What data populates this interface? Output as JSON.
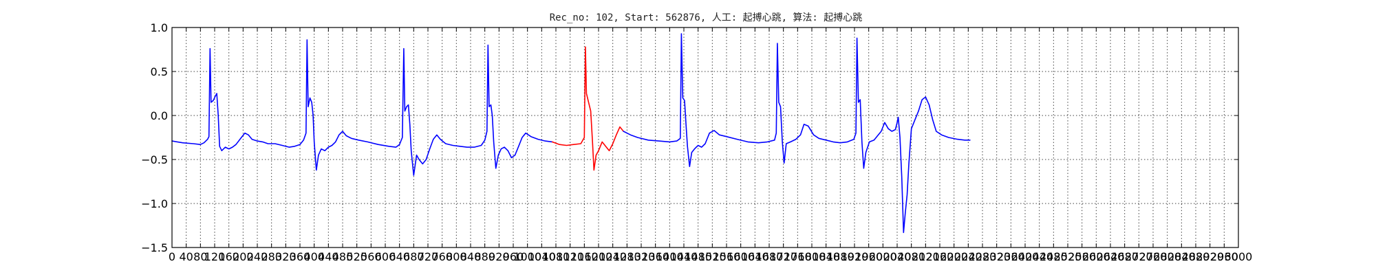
{
  "chart_data": {
    "type": "line",
    "title": "Rec_no: 102, Start: 562876, 人工: 起搏心跳, 算法: 起搏心跳",
    "xlabel": "",
    "ylabel": "",
    "xlim": [
      0,
      3000
    ],
    "ylim": [
      -1.5,
      1.0
    ],
    "grid": true,
    "yticks": [
      1.0,
      0.5,
      0.0,
      -0.5,
      -1.0,
      -1.5
    ],
    "ytick_labels": [
      "1.0",
      "0.5",
      "0.0",
      "−0.5",
      "−1.0",
      "−1.5"
    ],
    "xticks": [
      0,
      40,
      80,
      120,
      160,
      200,
      240,
      280,
      320,
      360,
      400,
      440,
      480,
      520,
      560,
      600,
      640,
      680,
      720,
      760,
      800,
      840,
      880,
      920,
      960,
      1000,
      1040,
      1080,
      1120,
      1160,
      1200,
      1240,
      1280,
      1320,
      1360,
      1400,
      1440,
      1480,
      1520,
      1560,
      1600,
      1640,
      1680,
      1720,
      1760,
      1800,
      1840,
      1880,
      1920,
      1960,
      2000,
      2040,
      2080,
      2120,
      2160,
      2200,
      2240,
      2280,
      2320,
      2360,
      2400,
      2440,
      2480,
      2520,
      2560,
      2600,
      2640,
      2680,
      2720,
      2760,
      2800,
      2840,
      2880,
      2920,
      2960,
      3000
    ],
    "xtick_labels": [
      "0",
      "40",
      "80",
      "120",
      "160",
      "200",
      "240",
      "280",
      "320",
      "360",
      "400",
      "440",
      "480",
      "520",
      "560",
      "600",
      "640",
      "680",
      "720",
      "760",
      "800",
      "840",
      "880",
      "920",
      "960",
      "1000",
      "1040",
      "1080",
      "1120",
      "1160",
      "1200",
      "1240",
      "1280",
      "1320",
      "1360",
      "1400",
      "1440",
      "1480",
      "1520",
      "1560",
      "1600",
      "1640",
      "1680",
      "1720",
      "1760",
      "1800",
      "1840",
      "1880",
      "1920",
      "1960",
      "2000",
      "2040",
      "2080",
      "2120",
      "2160",
      "2200",
      "2240",
      "2280",
      "2320",
      "2360",
      "2400",
      "2440",
      "2480",
      "2520",
      "2560",
      "2600",
      "2640",
      "2680",
      "2720",
      "2760",
      "2800",
      "2840",
      "2880",
      "2920",
      "2960",
      "3000"
    ],
    "series": [
      {
        "color": "#0000ff",
        "points": [
          [
            0,
            -0.29
          ],
          [
            30,
            -0.31
          ],
          [
            60,
            -0.32
          ],
          [
            80,
            -0.33
          ],
          [
            90,
            -0.31
          ],
          [
            100,
            -0.27
          ],
          [
            104,
            -0.24
          ],
          [
            107,
            0.76
          ],
          [
            110,
            0.15
          ],
          [
            116,
            0.17
          ],
          [
            122,
            0.22
          ],
          [
            126,
            0.25
          ],
          [
            130,
            0.0
          ],
          [
            134,
            -0.35
          ],
          [
            140,
            -0.4
          ],
          [
            150,
            -0.36
          ],
          [
            160,
            -0.38
          ],
          [
            170,
            -0.36
          ],
          [
            180,
            -0.33
          ],
          [
            195,
            -0.25
          ],
          [
            205,
            -0.2
          ],
          [
            215,
            -0.22
          ],
          [
            225,
            -0.27
          ],
          [
            240,
            -0.29
          ],
          [
            255,
            -0.3
          ],
          [
            270,
            -0.32
          ],
          [
            290,
            -0.32
          ],
          [
            310,
            -0.34
          ],
          [
            330,
            -0.36
          ],
          [
            345,
            -0.35
          ],
          [
            360,
            -0.33
          ],
          [
            370,
            -0.28
          ],
          [
            377,
            -0.2
          ],
          [
            380,
            0.86
          ],
          [
            383,
            0.1
          ],
          [
            388,
            0.2
          ],
          [
            393,
            0.15
          ],
          [
            397,
            0.0
          ],
          [
            400,
            -0.3
          ],
          [
            406,
            -0.62
          ],
          [
            412,
            -0.45
          ],
          [
            420,
            -0.38
          ],
          [
            430,
            -0.4
          ],
          [
            440,
            -0.36
          ],
          [
            450,
            -0.34
          ],
          [
            460,
            -0.3
          ],
          [
            470,
            -0.22
          ],
          [
            480,
            -0.18
          ],
          [
            490,
            -0.23
          ],
          [
            505,
            -0.26
          ],
          [
            525,
            -0.28
          ],
          [
            550,
            -0.3
          ],
          [
            580,
            -0.33
          ],
          [
            610,
            -0.35
          ],
          [
            630,
            -0.36
          ],
          [
            640,
            -0.33
          ],
          [
            648,
            -0.25
          ],
          [
            652,
            0.76
          ],
          [
            655,
            0.05
          ],
          [
            660,
            0.1
          ],
          [
            665,
            0.12
          ],
          [
            669,
            -0.1
          ],
          [
            673,
            -0.4
          ],
          [
            680,
            -0.68
          ],
          [
            688,
            -0.45
          ],
          [
            695,
            -0.5
          ],
          [
            705,
            -0.55
          ],
          [
            715,
            -0.5
          ],
          [
            725,
            -0.38
          ],
          [
            735,
            -0.27
          ],
          [
            745,
            -0.22
          ],
          [
            755,
            -0.27
          ],
          [
            770,
            -0.32
          ],
          [
            790,
            -0.34
          ],
          [
            810,
            -0.35
          ],
          [
            830,
            -0.36
          ],
          [
            850,
            -0.36
          ],
          [
            870,
            -0.34
          ],
          [
            880,
            -0.28
          ],
          [
            886,
            -0.18
          ],
          [
            889,
            0.8
          ],
          [
            892,
            0.1
          ],
          [
            897,
            0.12
          ],
          [
            901,
            0.0
          ],
          [
            905,
            -0.3
          ],
          [
            911,
            -0.6
          ],
          [
            918,
            -0.45
          ],
          [
            926,
            -0.38
          ],
          [
            935,
            -0.36
          ],
          [
            945,
            -0.4
          ],
          [
            955,
            -0.48
          ],
          [
            965,
            -0.45
          ],
          [
            975,
            -0.35
          ],
          [
            985,
            -0.25
          ],
          [
            995,
            -0.2
          ],
          [
            1010,
            -0.24
          ],
          [
            1030,
            -0.27
          ],
          [
            1050,
            -0.29
          ],
          [
            1070,
            -0.3
          ]
        ]
      },
      {
        "color": "#ff0000",
        "points": [
          [
            1070,
            -0.3
          ],
          [
            1090,
            -0.33
          ],
          [
            1110,
            -0.34
          ],
          [
            1130,
            -0.33
          ],
          [
            1150,
            -0.32
          ],
          [
            1160,
            -0.25
          ],
          [
            1163,
            0.78
          ],
          [
            1166,
            0.25
          ],
          [
            1172,
            0.15
          ],
          [
            1178,
            0.05
          ],
          [
            1183,
            -0.3
          ],
          [
            1187,
            -0.62
          ],
          [
            1193,
            -0.45
          ],
          [
            1200,
            -0.4
          ],
          [
            1210,
            -0.3
          ],
          [
            1220,
            -0.35
          ],
          [
            1230,
            -0.4
          ],
          [
            1240,
            -0.32
          ],
          [
            1250,
            -0.22
          ],
          [
            1260,
            -0.13
          ],
          [
            1270,
            -0.18
          ]
        ]
      },
      {
        "color": "#0000ff",
        "points": [
          [
            1270,
            -0.18
          ],
          [
            1290,
            -0.22
          ],
          [
            1310,
            -0.25
          ],
          [
            1340,
            -0.28
          ],
          [
            1370,
            -0.29
          ],
          [
            1400,
            -0.3
          ],
          [
            1420,
            -0.29
          ],
          [
            1430,
            -0.26
          ],
          [
            1433,
            0.93
          ],
          [
            1437,
            0.2
          ],
          [
            1442,
            0.17
          ],
          [
            1446,
            -0.1
          ],
          [
            1450,
            -0.35
          ],
          [
            1456,
            -0.58
          ],
          [
            1462,
            -0.42
          ],
          [
            1470,
            -0.38
          ],
          [
            1480,
            -0.34
          ],
          [
            1490,
            -0.36
          ],
          [
            1500,
            -0.32
          ],
          [
            1512,
            -0.2
          ],
          [
            1525,
            -0.17
          ],
          [
            1540,
            -0.22
          ],
          [
            1560,
            -0.24
          ],
          [
            1590,
            -0.27
          ],
          [
            1620,
            -0.3
          ],
          [
            1650,
            -0.31
          ],
          [
            1675,
            -0.3
          ],
          [
            1695,
            -0.28
          ],
          [
            1700,
            -0.2
          ],
          [
            1703,
            0.82
          ],
          [
            1707,
            0.15
          ],
          [
            1712,
            0.1
          ],
          [
            1717,
            -0.3
          ],
          [
            1722,
            -0.54
          ],
          [
            1728,
            -0.32
          ],
          [
            1740,
            -0.3
          ],
          [
            1755,
            -0.27
          ],
          [
            1768,
            -0.22
          ],
          [
            1778,
            -0.1
          ],
          [
            1790,
            -0.12
          ],
          [
            1805,
            -0.22
          ],
          [
            1820,
            -0.26
          ],
          [
            1840,
            -0.28
          ],
          [
            1860,
            -0.3
          ],
          [
            1880,
            -0.31
          ],
          [
            1900,
            -0.3
          ],
          [
            1918,
            -0.27
          ],
          [
            1924,
            -0.2
          ],
          [
            1927,
            0.88
          ],
          [
            1931,
            0.15
          ],
          [
            1936,
            0.18
          ],
          [
            1941,
            -0.3
          ],
          [
            1946,
            -0.6
          ],
          [
            1952,
            -0.42
          ],
          [
            1962,
            -0.3
          ],
          [
            1975,
            -0.28
          ],
          [
            1985,
            -0.23
          ],
          [
            1995,
            -0.18
          ],
          [
            2005,
            -0.08
          ],
          [
            2015,
            -0.15
          ],
          [
            2025,
            -0.18
          ],
          [
            2035,
            -0.16
          ],
          [
            2040,
            -0.08
          ],
          [
            2043,
            -0.02
          ],
          [
            2048,
            -0.25
          ],
          [
            2053,
            -0.7
          ],
          [
            2058,
            -1.33
          ],
          [
            2063,
            -1.1
          ],
          [
            2068,
            -0.9
          ],
          [
            2073,
            -0.55
          ],
          [
            2080,
            -0.15
          ],
          [
            2090,
            -0.05
          ],
          [
            2100,
            0.05
          ],
          [
            2110,
            0.18
          ],
          [
            2120,
            0.21
          ],
          [
            2130,
            0.12
          ],
          [
            2140,
            -0.05
          ],
          [
            2150,
            -0.18
          ],
          [
            2165,
            -0.22
          ],
          [
            2185,
            -0.25
          ],
          [
            2210,
            -0.27
          ],
          [
            2230,
            -0.28
          ],
          [
            2245,
            -0.28
          ]
        ]
      }
    ]
  }
}
